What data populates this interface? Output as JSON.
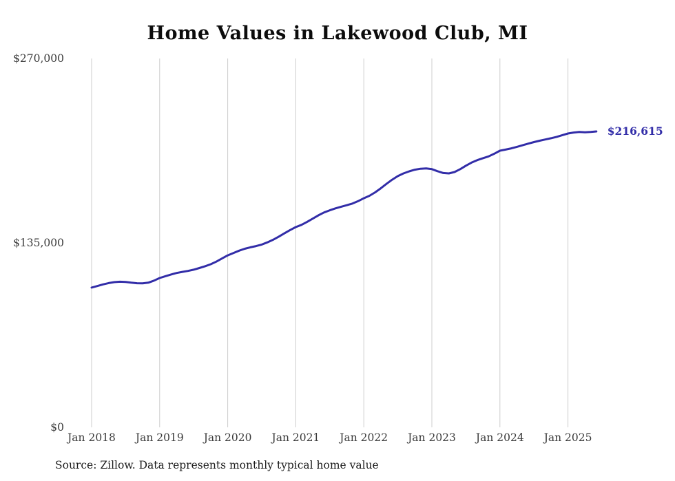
{
  "chart_data": {
    "type": "line",
    "title": "Home Values in Lakewood Club, MI",
    "source_note": "Source: Zillow. Data represents monthly typical home value",
    "end_label": "$216,615",
    "legend": "none",
    "grid": "vertical-only",
    "line_color": "#322da8",
    "grid_color": "#cccccc",
    "label_color": "#3a3a3a",
    "ylim": [
      0,
      270000
    ],
    "y_ticks": [
      {
        "value": 270000,
        "label": "$270,000"
      },
      {
        "value": 135000,
        "label": "$135,000"
      },
      {
        "value": 0,
        "label": "$0"
      }
    ],
    "x_ticks": [
      {
        "month_index": 0,
        "label": "Jan 2018"
      },
      {
        "month_index": 12,
        "label": "Jan 2019"
      },
      {
        "month_index": 24,
        "label": "Jan 2020"
      },
      {
        "month_index": 36,
        "label": "Jan 2021"
      },
      {
        "month_index": 48,
        "label": "Jan 2022"
      },
      {
        "month_index": 60,
        "label": "Jan 2023"
      },
      {
        "month_index": 72,
        "label": "Jan 2024"
      },
      {
        "month_index": 84,
        "label": "Jan 2025"
      }
    ],
    "series": [
      {
        "name": "Typical home value",
        "start": "Jan 2018",
        "frequency": "monthly",
        "values": [
          102300,
          103400,
          104600,
          105600,
          106300,
          106600,
          106400,
          105900,
          105500,
          105400,
          105900,
          107400,
          109300,
          110600,
          111900,
          113000,
          113800,
          114500,
          115400,
          116600,
          117900,
          119400,
          121300,
          123600,
          125900,
          127600,
          129300,
          130700,
          131800,
          132700,
          133800,
          135400,
          137300,
          139600,
          142000,
          144400,
          146600,
          148200,
          150400,
          152800,
          155200,
          157300,
          158900,
          160300,
          161500,
          162600,
          163800,
          165600,
          167700,
          169500,
          172000,
          175000,
          178200,
          181300,
          183900,
          185900,
          187400,
          188600,
          189300,
          189500,
          189000,
          187500,
          186200,
          185900,
          186900,
          189000,
          191500,
          193800,
          195600,
          197000,
          198300,
          200300,
          202500,
          203300,
          204200,
          205300,
          206500,
          207700,
          208800,
          209800,
          210700,
          211600,
          212600,
          213900,
          215100,
          215800,
          216200,
          216000,
          216200,
          216615
        ]
      }
    ]
  }
}
